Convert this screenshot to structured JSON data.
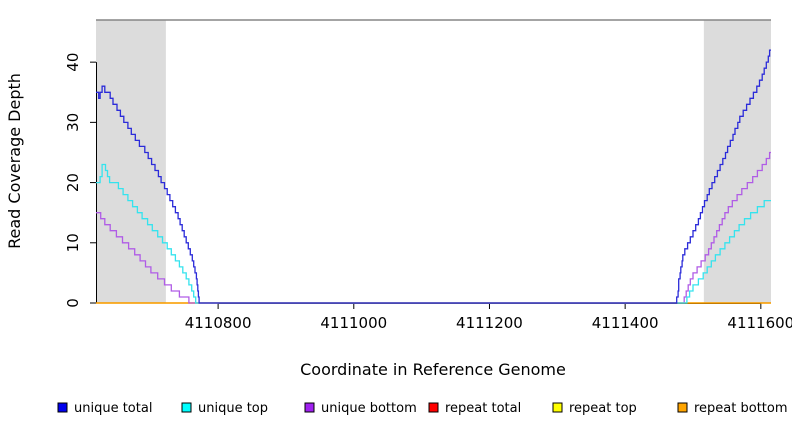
{
  "chart_data": {
    "type": "line",
    "subtype": "step",
    "title": "",
    "xlabel": "Coordinate in Reference Genome",
    "ylabel": "Read Coverage Depth",
    "xlim": [
      4110620,
      4111615
    ],
    "ylim": [
      0,
      47
    ],
    "x_ticks": [
      4110800,
      4111000,
      4111200,
      4111400,
      4111600
    ],
    "y_ticks": [
      0,
      10,
      20,
      30,
      40
    ],
    "grid": false,
    "legend_position": "bottom",
    "plot_border_color": "#858585",
    "axis_color": "#000000",
    "shaded_region_color": "#dcdcdc",
    "shaded_regions": [
      {
        "x0": 4110620,
        "x1": 4110723
      },
      {
        "x0": 4111516,
        "x1": 4111615
      }
    ],
    "series": [
      {
        "name": "unique total",
        "color": "#0000ee",
        "line_color": "#2b2bd9",
        "points": [
          [
            4110620,
            35
          ],
          [
            4110624,
            34
          ],
          [
            4110626,
            35
          ],
          [
            4110629,
            36
          ],
          [
            4110633,
            35
          ],
          [
            4110641,
            34
          ],
          [
            4110645,
            33
          ],
          [
            4110651,
            32
          ],
          [
            4110656,
            31
          ],
          [
            4110661,
            30
          ],
          [
            4110667,
            29
          ],
          [
            4110672,
            28
          ],
          [
            4110678,
            27
          ],
          [
            4110684,
            26
          ],
          [
            4110692,
            25
          ],
          [
            4110697,
            24
          ],
          [
            4110702,
            23
          ],
          [
            4110707,
            22
          ],
          [
            4110712,
            21
          ],
          [
            4110716,
            20
          ],
          [
            4110721,
            19
          ],
          [
            4110725,
            18
          ],
          [
            4110729,
            17
          ],
          [
            4110733,
            16
          ],
          [
            4110737,
            15
          ],
          [
            4110741,
            14
          ],
          [
            4110744,
            13
          ],
          [
            4110747,
            12
          ],
          [
            4110750,
            11
          ],
          [
            4110753,
            10
          ],
          [
            4110756,
            9
          ],
          [
            4110759,
            8
          ],
          [
            4110762,
            7
          ],
          [
            4110764,
            6
          ],
          [
            4110766,
            5
          ],
          [
            4110768,
            4
          ],
          [
            4110769,
            3
          ],
          [
            4110770,
            2
          ],
          [
            4110771,
            1
          ],
          [
            4110772,
            0
          ],
          [
            4111476,
            1
          ],
          [
            4111478,
            2
          ],
          [
            4111479,
            4
          ],
          [
            4111481,
            5
          ],
          [
            4111482,
            6
          ],
          [
            4111484,
            7
          ],
          [
            4111485,
            8
          ],
          [
            4111488,
            9
          ],
          [
            4111492,
            10
          ],
          [
            4111496,
            11
          ],
          [
            4111500,
            12
          ],
          [
            4111504,
            13
          ],
          [
            4111508,
            14
          ],
          [
            4111511,
            15
          ],
          [
            4111514,
            16
          ],
          [
            4111517,
            17
          ],
          [
            4111521,
            18
          ],
          [
            4111524,
            19
          ],
          [
            4111528,
            20
          ],
          [
            4111532,
            21
          ],
          [
            4111536,
            22
          ],
          [
            4111540,
            23
          ],
          [
            4111544,
            24
          ],
          [
            4111548,
            25
          ],
          [
            4111551,
            26
          ],
          [
            4111555,
            27
          ],
          [
            4111559,
            28
          ],
          [
            4111562,
            29
          ],
          [
            4111566,
            30
          ],
          [
            4111569,
            31
          ],
          [
            4111574,
            32
          ],
          [
            4111579,
            33
          ],
          [
            4111584,
            34
          ],
          [
            4111589,
            35
          ],
          [
            4111594,
            36
          ],
          [
            4111598,
            37
          ],
          [
            4111602,
            38
          ],
          [
            4111605,
            39
          ],
          [
            4111608,
            40
          ],
          [
            4111611,
            41
          ],
          [
            4111613,
            42
          ],
          [
            4111615,
            42
          ]
        ]
      },
      {
        "name": "unique top",
        "color": "#00ffff",
        "line_color": "#35e3ee",
        "points": [
          [
            4110620,
            20
          ],
          [
            4110626,
            21
          ],
          [
            4110629,
            23
          ],
          [
            4110634,
            22
          ],
          [
            4110637,
            21
          ],
          [
            4110640,
            20
          ],
          [
            4110653,
            19
          ],
          [
            4110660,
            18
          ],
          [
            4110667,
            17
          ],
          [
            4110674,
            16
          ],
          [
            4110681,
            15
          ],
          [
            4110688,
            14
          ],
          [
            4110696,
            13
          ],
          [
            4110703,
            12
          ],
          [
            4110711,
            11
          ],
          [
            4110718,
            10
          ],
          [
            4110725,
            9
          ],
          [
            4110731,
            8
          ],
          [
            4110737,
            7
          ],
          [
            4110743,
            6
          ],
          [
            4110748,
            5
          ],
          [
            4110753,
            4
          ],
          [
            4110757,
            3
          ],
          [
            4110761,
            2
          ],
          [
            4110764,
            1
          ],
          [
            4110767,
            0
          ],
          [
            4111491,
            1
          ],
          [
            4111495,
            2
          ],
          [
            4111500,
            3
          ],
          [
            4111508,
            4
          ],
          [
            4111515,
            5
          ],
          [
            4111521,
            6
          ],
          [
            4111527,
            7
          ],
          [
            4111533,
            8
          ],
          [
            4111540,
            9
          ],
          [
            4111547,
            10
          ],
          [
            4111554,
            11
          ],
          [
            4111561,
            12
          ],
          [
            4111568,
            13
          ],
          [
            4111576,
            14
          ],
          [
            4111585,
            15
          ],
          [
            4111595,
            16
          ],
          [
            4111605,
            17
          ],
          [
            4111615,
            17
          ]
        ]
      },
      {
        "name": "unique bottom",
        "color": "#a020f0",
        "line_color": "#b05ce6",
        "points": [
          [
            4110620,
            15
          ],
          [
            4110627,
            14
          ],
          [
            4110633,
            13
          ],
          [
            4110641,
            12
          ],
          [
            4110650,
            11
          ],
          [
            4110659,
            10
          ],
          [
            4110668,
            9
          ],
          [
            4110677,
            8
          ],
          [
            4110685,
            7
          ],
          [
            4110693,
            6
          ],
          [
            4110701,
            5
          ],
          [
            4110711,
            4
          ],
          [
            4110721,
            3
          ],
          [
            4110731,
            2
          ],
          [
            4110743,
            1
          ],
          [
            4110757,
            0
          ],
          [
            4111487,
            1
          ],
          [
            4111490,
            2
          ],
          [
            4111493,
            3
          ],
          [
            4111496,
            4
          ],
          [
            4111500,
            5
          ],
          [
            4111506,
            6
          ],
          [
            4111512,
            7
          ],
          [
            4111518,
            8
          ],
          [
            4111523,
            9
          ],
          [
            4111527,
            10
          ],
          [
            4111531,
            11
          ],
          [
            4111535,
            12
          ],
          [
            4111539,
            13
          ],
          [
            4111543,
            14
          ],
          [
            4111547,
            15
          ],
          [
            4111552,
            16
          ],
          [
            4111558,
            17
          ],
          [
            4111565,
            18
          ],
          [
            4111572,
            19
          ],
          [
            4111580,
            20
          ],
          [
            4111588,
            21
          ],
          [
            4111595,
            22
          ],
          [
            4111602,
            23
          ],
          [
            4111608,
            24
          ],
          [
            4111613,
            25
          ],
          [
            4111615,
            25
          ]
        ]
      },
      {
        "name": "repeat total",
        "color": "#ff0000",
        "line_color": "#cc0000",
        "points": [
          [
            4110620,
            0
          ],
          [
            4111615,
            0
          ]
        ]
      },
      {
        "name": "repeat top",
        "color": "#ffff00",
        "line_color": "#f0e800",
        "points": [
          [
            4110620,
            0
          ],
          [
            4111615,
            0
          ]
        ]
      },
      {
        "name": "repeat bottom",
        "color": "#ffa500",
        "line_color": "#ffa500",
        "points": [
          [
            4110620,
            0
          ],
          [
            4111615,
            0
          ]
        ]
      }
    ]
  }
}
